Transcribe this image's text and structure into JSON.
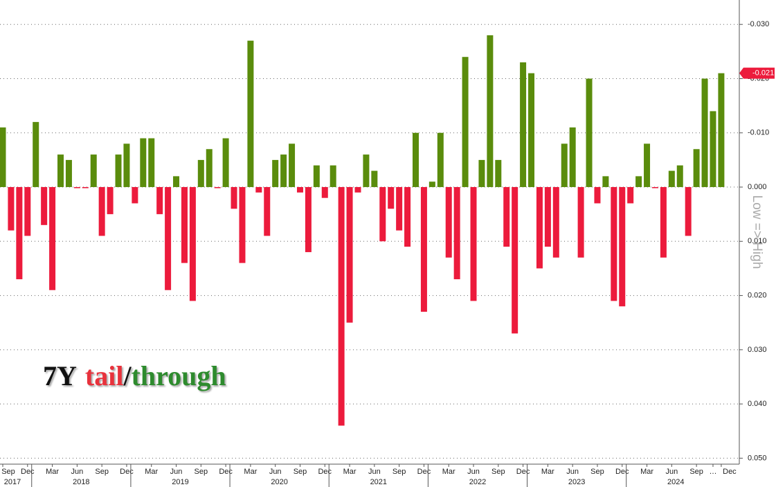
{
  "chart_data": {
    "type": "bar",
    "title_parts": [
      {
        "text": "7Y",
        "color": "#111111"
      },
      {
        "text": "tail",
        "color": "#e8323c"
      },
      {
        "text": "/",
        "color": "#111111"
      },
      {
        "text": "through",
        "color": "#2e8b2e"
      }
    ],
    "y_axis_label": "Low => High",
    "categories": [
      "Sep",
      null,
      null,
      "Dec",
      null,
      null,
      "Mar",
      null,
      null,
      "Jun",
      null,
      null,
      "Sep",
      null,
      null,
      "Dec",
      null,
      null,
      "Mar",
      null,
      null,
      "Jun",
      null,
      null,
      "Sep",
      null,
      null,
      "Dec",
      null,
      null,
      "Mar",
      null,
      null,
      "Jun",
      null,
      null,
      "Sep",
      null,
      null,
      "Dec",
      null,
      null,
      "Mar",
      null,
      null,
      "Jun",
      null,
      null,
      "Sep",
      null,
      null,
      "Dec",
      null,
      null,
      "Mar",
      null,
      null,
      "Jun",
      null,
      null,
      "Sep",
      null,
      null,
      "Dec",
      null,
      null,
      "Mar",
      null,
      null,
      "Jun",
      null,
      null,
      "Sep",
      null,
      null,
      "Dec",
      null,
      null,
      "Mar",
      null,
      null,
      "Jun",
      null,
      null,
      "Sep",
      null,
      "…",
      "Dec"
    ],
    "years": [
      "2017",
      "2018",
      "2019",
      "2020",
      "2021",
      "2022",
      "2023",
      "2024"
    ],
    "values": [
      -0.011,
      0.008,
      0.017,
      0.009,
      -0.012,
      0.007,
      0.019,
      -0.006,
      -0.005,
      0.0002,
      0.0002,
      -0.006,
      0.009,
      0.005,
      -0.006,
      -0.008,
      0.003,
      -0.009,
      -0.009,
      0.005,
      0.019,
      -0.002,
      0.014,
      0.021,
      -0.005,
      -0.007,
      0.0002,
      -0.009,
      0.004,
      0.014,
      -0.027,
      0.001,
      0.009,
      -0.005,
      -0.006,
      -0.008,
      0.001,
      0.012,
      -0.004,
      0.002,
      -0.004,
      0.044,
      0.025,
      0.001,
      -0.006,
      -0.003,
      0.01,
      0.004,
      0.008,
      0.011,
      -0.01,
      0.023,
      -0.001,
      -0.01,
      0.013,
      0.017,
      -0.024,
      0.021,
      -0.005,
      -0.028,
      -0.005,
      0.011,
      0.027,
      -0.023,
      -0.021,
      0.015,
      0.011,
      0.013,
      -0.008,
      -0.011,
      0.013,
      -0.02,
      0.003,
      -0.002,
      0.021,
      0.022,
      0.003,
      -0.002,
      -0.008,
      0.0002,
      0.013,
      -0.003,
      -0.004,
      0.009,
      -0.007,
      -0.02,
      -0.014,
      -0.021
    ],
    "colors": {
      "tail": "#ec1b3c",
      "through": "#5a8c0c"
    },
    "ylim": [
      -0.0345,
      0.0511
    ],
    "y_inverted": true,
    "yticks": [
      {
        "value": -0.03,
        "label": "-0.030"
      },
      {
        "value": -0.02,
        "label": "-0.020"
      },
      {
        "value": -0.01,
        "label": "-0.010"
      },
      {
        "value": 0,
        "label": "0.000"
      },
      {
        "value": 0.01,
        "label": "0.010"
      },
      {
        "value": 0.02,
        "label": "0.020"
      },
      {
        "value": 0.03,
        "label": "0.030"
      },
      {
        "value": 0.04,
        "label": "0.040"
      },
      {
        "value": 0.05,
        "label": "0.050"
      }
    ],
    "grid": true,
    "last_value_marker": true
  }
}
